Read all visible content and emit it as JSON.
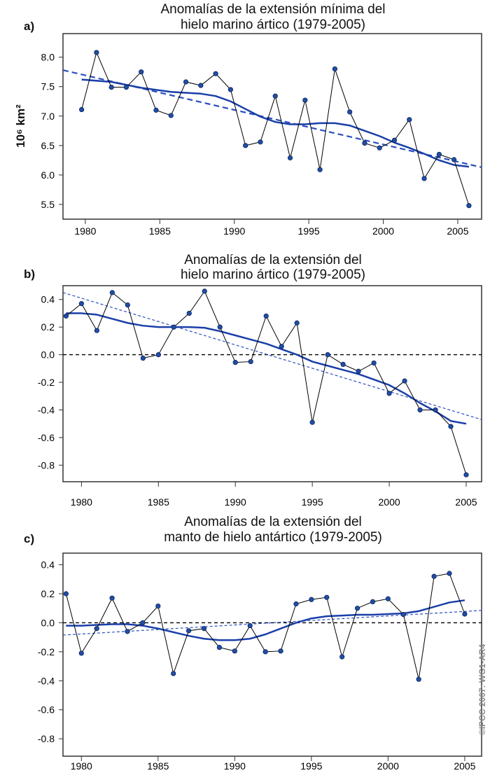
{
  "copyright": "©IPCC 2007: WG1-AR4",
  "colors": {
    "points": "#1f4fa8",
    "smooth": "#1a3fa8",
    "trend": "#2a4fc0",
    "zero": "#000000",
    "connector": "#000000"
  },
  "chart_data": [
    {
      "type": "line",
      "panel_label": "a)",
      "title": [
        "Anomalías de la extensión mínima del",
        "hielo marino ártico (1979-2005)"
      ],
      "ylabel": "10⁶ km²",
      "xlim": [
        1978.5,
        2006.6
      ],
      "ylim": [
        5.25,
        8.4
      ],
      "xticks": [
        1980,
        1985,
        1990,
        1995,
        2000,
        2005
      ],
      "yticks": [
        "8.0",
        "7.5",
        "7.0",
        "6.5",
        "6.0",
        "5.5"
      ],
      "zero_line": false,
      "x": [
        1979,
        1980,
        1981,
        1982,
        1983,
        1984,
        1985,
        1986,
        1987,
        1988,
        1989,
        1990,
        1991,
        1992,
        1993,
        1994,
        1995,
        1996,
        1997,
        1998,
        1999,
        2000,
        2001,
        2002,
        2003,
        2004,
        2005
      ],
      "values": [
        7.11,
        8.08,
        7.49,
        7.49,
        7.75,
        7.1,
        7.01,
        7.58,
        7.52,
        7.72,
        7.45,
        6.5,
        6.56,
        7.34,
        6.29,
        7.27,
        6.09,
        7.8,
        7.07,
        6.54,
        6.46,
        6.59,
        6.94,
        5.94,
        6.35,
        6.26,
        5.48
      ],
      "smooth": [
        [
          1979,
          7.62
        ],
        [
          1981,
          7.58
        ],
        [
          1983,
          7.48
        ],
        [
          1985,
          7.41
        ],
        [
          1987,
          7.38
        ],
        [
          1988,
          7.34
        ],
        [
          1989,
          7.25
        ],
        [
          1990,
          7.12
        ],
        [
          1991,
          6.99
        ],
        [
          1992,
          6.9
        ],
        [
          1993,
          6.86
        ],
        [
          1994,
          6.86
        ],
        [
          1995,
          6.88
        ],
        [
          1996,
          6.88
        ],
        [
          1997,
          6.84
        ],
        [
          1998,
          6.75
        ],
        [
          1999,
          6.66
        ],
        [
          2000,
          6.55
        ],
        [
          2001,
          6.46
        ],
        [
          2002,
          6.36
        ],
        [
          2003,
          6.25
        ],
        [
          2004,
          6.17
        ],
        [
          2005,
          6.14
        ]
      ],
      "trend": [
        [
          1978.5,
          7.78
        ],
        [
          2006.6,
          6.13
        ]
      ]
    },
    {
      "type": "line",
      "panel_label": "b)",
      "title": [
        "Anomalías de la extensión del",
        "hielo marino ártico (1979-2005)"
      ],
      "xlim": [
        1978.8,
        2006.0
      ],
      "ylim": [
        -0.92,
        0.5
      ],
      "xticks": [
        1980,
        1985,
        1990,
        1995,
        2000,
        2005
      ],
      "yticks": [
        "0.4",
        "0.2",
        "0.0",
        "-0.2",
        "-0.4",
        "-0.6",
        "-0.8"
      ],
      "zero_line": true,
      "x": [
        1979,
        1980,
        1981,
        1982,
        1983,
        1984,
        1985,
        1986,
        1987,
        1988,
        1989,
        1990,
        1991,
        1992,
        1993,
        1994,
        1995,
        1996,
        1997,
        1998,
        1999,
        2000,
        2001,
        2002,
        2003,
        2004,
        2005
      ],
      "values": [
        0.28,
        0.37,
        0.175,
        0.45,
        0.36,
        -0.025,
        0.0,
        0.2,
        0.3,
        0.46,
        0.2,
        -0.056,
        -0.05,
        0.28,
        0.06,
        0.23,
        -0.49,
        0.0,
        -0.07,
        -0.12,
        -0.06,
        -0.28,
        -0.19,
        -0.4,
        -0.4,
        -0.52,
        -0.87
      ],
      "smooth": [
        [
          1979,
          0.3
        ],
        [
          1980,
          0.3
        ],
        [
          1981,
          0.29
        ],
        [
          1982,
          0.26
        ],
        [
          1983,
          0.23
        ],
        [
          1984,
          0.21
        ],
        [
          1985,
          0.2
        ],
        [
          1986,
          0.2
        ],
        [
          1987,
          0.2
        ],
        [
          1988,
          0.195
        ],
        [
          1989,
          0.17
        ],
        [
          1990,
          0.14
        ],
        [
          1991,
          0.11
        ],
        [
          1992,
          0.08
        ],
        [
          1993,
          0.04
        ],
        [
          1994,
          0.0
        ],
        [
          1995,
          -0.05
        ],
        [
          1996,
          -0.08
        ],
        [
          1997,
          -0.11
        ],
        [
          1998,
          -0.14
        ],
        [
          1999,
          -0.18
        ],
        [
          2000,
          -0.22
        ],
        [
          2001,
          -0.28
        ],
        [
          2002,
          -0.35
        ],
        [
          2003,
          -0.41
        ],
        [
          2004,
          -0.48
        ],
        [
          2005,
          -0.5
        ]
      ],
      "trend": [
        [
          1978.8,
          0.45
        ],
        [
          2006.0,
          -0.47
        ]
      ]
    },
    {
      "type": "line",
      "panel_label": "c)",
      "title": [
        "Anomalías de la extensión del",
        "manto de hielo antártico (1979-2005)"
      ],
      "xlim": [
        1978.8,
        2006.1
      ],
      "ylim": [
        -0.92,
        0.48
      ],
      "xticks": [
        1980,
        1985,
        1990,
        1995,
        2000,
        2005
      ],
      "yticks": [
        "0.4",
        "0.2",
        "0.0",
        "-0.2",
        "-0.4",
        "-0.6",
        "-0.8"
      ],
      "zero_line": true,
      "x": [
        1979,
        1980,
        1981,
        1982,
        1983,
        1984,
        1985,
        1986,
        1987,
        1988,
        1989,
        1990,
        1991,
        1992,
        1993,
        1994,
        1995,
        1996,
        1997,
        1998,
        1999,
        2000,
        2001,
        2002,
        2003,
        2004,
        2005
      ],
      "values": [
        0.2,
        -0.21,
        -0.04,
        0.17,
        -0.06,
        0.0,
        0.115,
        -0.35,
        -0.055,
        -0.04,
        -0.17,
        -0.195,
        -0.02,
        -0.2,
        -0.195,
        0.13,
        0.16,
        0.175,
        -0.235,
        0.1,
        0.145,
        0.165,
        0.057,
        -0.39,
        0.32,
        0.34,
        0.06
      ],
      "smooth": [
        [
          1979,
          -0.02
        ],
        [
          1980,
          -0.02
        ],
        [
          1981,
          -0.015
        ],
        [
          1982,
          -0.01
        ],
        [
          1983,
          -0.01
        ],
        [
          1984,
          -0.02
        ],
        [
          1985,
          -0.04
        ],
        [
          1986,
          -0.065
        ],
        [
          1987,
          -0.09
        ],
        [
          1988,
          -0.11
        ],
        [
          1989,
          -0.12
        ],
        [
          1990,
          -0.12
        ],
        [
          1991,
          -0.11
        ],
        [
          1992,
          -0.08
        ],
        [
          1993,
          -0.04
        ],
        [
          1994,
          0.0
        ],
        [
          1995,
          0.03
        ],
        [
          1996,
          0.045
        ],
        [
          1997,
          0.05
        ],
        [
          1998,
          0.055
        ],
        [
          1999,
          0.055
        ],
        [
          2000,
          0.06
        ],
        [
          2001,
          0.065
        ],
        [
          2002,
          0.08
        ],
        [
          2003,
          0.11
        ],
        [
          2004,
          0.14
        ],
        [
          2005,
          0.155
        ]
      ],
      "trend": [
        [
          1978.8,
          -0.085
        ],
        [
          2006.1,
          0.085
        ]
      ]
    }
  ]
}
